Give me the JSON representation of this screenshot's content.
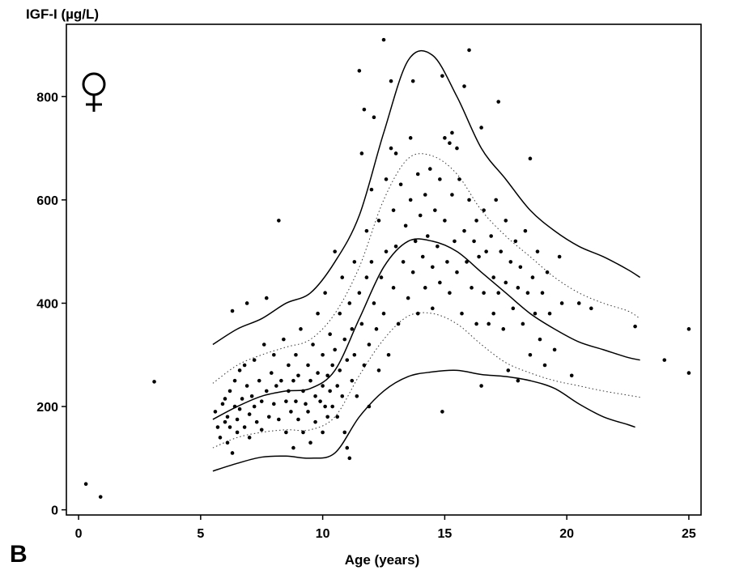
{
  "panel_label": "B",
  "chart_data": {
    "type": "scatter",
    "title": "",
    "xlabel": "Age (years)",
    "ylabel": "IGF-I (µg/L)",
    "xlim": [
      -0.5,
      25.5
    ],
    "ylim": [
      -10,
      940
    ],
    "xticks": [
      0,
      5,
      10,
      15,
      20,
      25
    ],
    "yticks": [
      0,
      200,
      400,
      600,
      800
    ],
    "grid": false,
    "symbol": "female-symbol",
    "points": [
      [
        0.3,
        50
      ],
      [
        0.9,
        25
      ],
      [
        3.1,
        248
      ],
      [
        5.6,
        190
      ],
      [
        5.7,
        160
      ],
      [
        5.8,
        140
      ],
      [
        5.9,
        205
      ],
      [
        6.0,
        170
      ],
      [
        6.0,
        215
      ],
      [
        6.1,
        180
      ],
      [
        6.1,
        130
      ],
      [
        6.2,
        230
      ],
      [
        6.2,
        160
      ],
      [
        6.3,
        385
      ],
      [
        6.3,
        110
      ],
      [
        6.4,
        200
      ],
      [
        6.4,
        250
      ],
      [
        6.5,
        150
      ],
      [
        6.5,
        175
      ],
      [
        6.6,
        270
      ],
      [
        6.6,
        195
      ],
      [
        6.7,
        215
      ],
      [
        6.8,
        280
      ],
      [
        6.8,
        160
      ],
      [
        6.9,
        400
      ],
      [
        6.9,
        240
      ],
      [
        7.0,
        185
      ],
      [
        7.0,
        140
      ],
      [
        7.1,
        220
      ],
      [
        7.2,
        290
      ],
      [
        7.2,
        200
      ],
      [
        7.3,
        170
      ],
      [
        7.4,
        250
      ],
      [
        7.5,
        210
      ],
      [
        7.5,
        155
      ],
      [
        7.6,
        320
      ],
      [
        7.7,
        410
      ],
      [
        7.7,
        230
      ],
      [
        7.8,
        180
      ],
      [
        7.9,
        265
      ],
      [
        8.0,
        205
      ],
      [
        8.0,
        300
      ],
      [
        8.1,
        240
      ],
      [
        8.2,
        560
      ],
      [
        8.2,
        175
      ],
      [
        8.3,
        250
      ],
      [
        8.4,
        330
      ],
      [
        8.5,
        210
      ],
      [
        8.5,
        150
      ],
      [
        8.6,
        280
      ],
      [
        8.6,
        230
      ],
      [
        8.7,
        190
      ],
      [
        8.8,
        250
      ],
      [
        8.8,
        120
      ],
      [
        8.9,
        300
      ],
      [
        8.9,
        210
      ],
      [
        9.0,
        260
      ],
      [
        9.0,
        175
      ],
      [
        9.1,
        350
      ],
      [
        9.2,
        230
      ],
      [
        9.2,
        150
      ],
      [
        9.3,
        205
      ],
      [
        9.4,
        280
      ],
      [
        9.4,
        190
      ],
      [
        9.5,
        250
      ],
      [
        9.5,
        130
      ],
      [
        9.6,
        320
      ],
      [
        9.7,
        220
      ],
      [
        9.7,
        170
      ],
      [
        9.8,
        265
      ],
      [
        9.8,
        380
      ],
      [
        9.9,
        210
      ],
      [
        10.0,
        240
      ],
      [
        10.0,
        300
      ],
      [
        10.0,
        150
      ],
      [
        10.1,
        200
      ],
      [
        10.1,
        420
      ],
      [
        10.2,
        260
      ],
      [
        10.2,
        180
      ],
      [
        10.3,
        340
      ],
      [
        10.3,
        230
      ],
      [
        10.4,
        280
      ],
      [
        10.4,
        200
      ],
      [
        10.5,
        500
      ],
      [
        10.5,
        310
      ],
      [
        10.6,
        240
      ],
      [
        10.6,
        180
      ],
      [
        10.7,
        380
      ],
      [
        10.7,
        270
      ],
      [
        10.8,
        450
      ],
      [
        10.8,
        220
      ],
      [
        10.9,
        330
      ],
      [
        10.9,
        150
      ],
      [
        11.0,
        120
      ],
      [
        11.0,
        290
      ],
      [
        11.1,
        400
      ],
      [
        11.1,
        100
      ],
      [
        11.2,
        250
      ],
      [
        11.2,
        350
      ],
      [
        11.3,
        480
      ],
      [
        11.3,
        300
      ],
      [
        11.4,
        220
      ],
      [
        11.5,
        850
      ],
      [
        11.5,
        420
      ],
      [
        11.6,
        690
      ],
      [
        11.6,
        360
      ],
      [
        11.7,
        775
      ],
      [
        11.7,
        280
      ],
      [
        11.8,
        540
      ],
      [
        11.8,
        450
      ],
      [
        11.9,
        320
      ],
      [
        11.9,
        200
      ],
      [
        12.0,
        620
      ],
      [
        12.0,
        480
      ],
      [
        12.1,
        760
      ],
      [
        12.1,
        400
      ],
      [
        12.2,
        350
      ],
      [
        12.3,
        560
      ],
      [
        12.3,
        270
      ],
      [
        12.4,
        450
      ],
      [
        12.5,
        910
      ],
      [
        12.5,
        380
      ],
      [
        12.6,
        640
      ],
      [
        12.6,
        500
      ],
      [
        12.7,
        300
      ],
      [
        12.8,
        830
      ],
      [
        12.8,
        700
      ],
      [
        12.9,
        580
      ],
      [
        12.9,
        430
      ],
      [
        13.0,
        690
      ],
      [
        13.0,
        510
      ],
      [
        13.1,
        360
      ],
      [
        13.2,
        630
      ],
      [
        13.3,
        480
      ],
      [
        13.4,
        550
      ],
      [
        13.5,
        410
      ],
      [
        13.6,
        720
      ],
      [
        13.6,
        600
      ],
      [
        13.7,
        830
      ],
      [
        13.7,
        460
      ],
      [
        13.8,
        520
      ],
      [
        13.9,
        650
      ],
      [
        13.9,
        380
      ],
      [
        14.0,
        570
      ],
      [
        14.1,
        490
      ],
      [
        14.2,
        610
      ],
      [
        14.2,
        430
      ],
      [
        14.3,
        530
      ],
      [
        14.4,
        660
      ],
      [
        14.5,
        470
      ],
      [
        14.5,
        390
      ],
      [
        14.6,
        580
      ],
      [
        14.7,
        510
      ],
      [
        14.8,
        640
      ],
      [
        14.8,
        440
      ],
      [
        14.9,
        190
      ],
      [
        14.9,
        840
      ],
      [
        15.0,
        720
      ],
      [
        15.0,
        560
      ],
      [
        15.1,
        480
      ],
      [
        15.2,
        710
      ],
      [
        15.2,
        420
      ],
      [
        15.3,
        730
      ],
      [
        15.3,
        610
      ],
      [
        15.4,
        520
      ],
      [
        15.5,
        700
      ],
      [
        15.5,
        460
      ],
      [
        15.6,
        640
      ],
      [
        15.7,
        380
      ],
      [
        15.8,
        820
      ],
      [
        15.8,
        540
      ],
      [
        15.9,
        480
      ],
      [
        16.0,
        890
      ],
      [
        16.0,
        600
      ],
      [
        16.1,
        430
      ],
      [
        16.2,
        520
      ],
      [
        16.3,
        560
      ],
      [
        16.3,
        360
      ],
      [
        16.4,
        490
      ],
      [
        16.5,
        740
      ],
      [
        16.5,
        240
      ],
      [
        16.6,
        420
      ],
      [
        16.6,
        580
      ],
      [
        16.7,
        500
      ],
      [
        16.8,
        360
      ],
      [
        16.9,
        530
      ],
      [
        17.0,
        450
      ],
      [
        17.0,
        380
      ],
      [
        17.1,
        600
      ],
      [
        17.2,
        420
      ],
      [
        17.2,
        790
      ],
      [
        17.3,
        500
      ],
      [
        17.4,
        350
      ],
      [
        17.5,
        560
      ],
      [
        17.5,
        440
      ],
      [
        17.6,
        270
      ],
      [
        17.7,
        480
      ],
      [
        17.8,
        390
      ],
      [
        17.9,
        520
      ],
      [
        18.0,
        430
      ],
      [
        18.0,
        250
      ],
      [
        18.1,
        470
      ],
      [
        18.2,
        360
      ],
      [
        18.3,
        540
      ],
      [
        18.4,
        420
      ],
      [
        18.5,
        680
      ],
      [
        18.5,
        300
      ],
      [
        18.6,
        450
      ],
      [
        18.7,
        380
      ],
      [
        18.8,
        500
      ],
      [
        18.9,
        330
      ],
      [
        19.0,
        420
      ],
      [
        19.1,
        280
      ],
      [
        19.2,
        460
      ],
      [
        19.3,
        380
      ],
      [
        19.5,
        310
      ],
      [
        19.7,
        490
      ],
      [
        19.8,
        400
      ],
      [
        20.2,
        260
      ],
      [
        20.5,
        400
      ],
      [
        21.0,
        390
      ],
      [
        22.8,
        355
      ],
      [
        24.0,
        290
      ],
      [
        25.0,
        350
      ],
      [
        25.0,
        265
      ]
    ],
    "series": [
      {
        "style": "solid",
        "x": [
          5.5,
          6.5,
          7.5,
          8.5,
          9.5,
          10.5,
          11.5,
          12.5,
          13.5,
          14.5,
          15.5,
          16.5,
          17.5,
          18.5,
          19.5,
          20.5,
          21.5,
          22.5,
          23.0
        ],
        "values": [
          320,
          350,
          370,
          400,
          420,
          480,
          570,
          730,
          870,
          880,
          800,
          700,
          640,
          580,
          540,
          510,
          490,
          465,
          450
        ]
      },
      {
        "style": "dotted",
        "x": [
          5.5,
          6.5,
          7.5,
          8.5,
          9.5,
          10.5,
          11.5,
          12.5,
          13.5,
          14.5,
          15.5,
          16.5,
          17.5,
          18.5,
          19.5,
          20.5,
          21.5,
          22.5,
          23.0
        ],
        "values": [
          245,
          280,
          300,
          315,
          330,
          380,
          470,
          600,
          680,
          685,
          650,
          580,
          530,
          490,
          450,
          420,
          400,
          385,
          370
        ]
      },
      {
        "style": "solid",
        "x": [
          5.5,
          6.5,
          7.5,
          8.5,
          9.5,
          10.5,
          11.5,
          12.5,
          13.5,
          14.5,
          15.5,
          16.5,
          17.5,
          18.5,
          19.5,
          20.5,
          21.5,
          22.5,
          23.0
        ],
        "values": [
          175,
          200,
          220,
          230,
          235,
          270,
          370,
          470,
          520,
          520,
          500,
          460,
          420,
          380,
          350,
          325,
          310,
          295,
          290
        ]
      },
      {
        "style": "dotted",
        "x": [
          5.5,
          6.5,
          7.5,
          8.5,
          9.5,
          10.5,
          11.5,
          12.5,
          13.5,
          14.5,
          15.5,
          16.5,
          17.5,
          18.5,
          19.5,
          20.5,
          21.5,
          22.5,
          23.0
        ],
        "values": [
          120,
          140,
          150,
          155,
          155,
          180,
          260,
          330,
          375,
          380,
          360,
          320,
          285,
          265,
          250,
          240,
          230,
          222,
          218
        ]
      },
      {
        "style": "solid",
        "x": [
          5.5,
          6.5,
          7.5,
          8.5,
          9.5,
          10.5,
          11.5,
          12.5,
          13.5,
          14.5,
          15.5,
          16.5,
          17.5,
          18.5,
          19.5,
          20.5,
          21.5,
          22.5,
          22.8
        ],
        "values": [
          75,
          90,
          102,
          104,
          100,
          110,
          180,
          230,
          258,
          267,
          270,
          262,
          258,
          250,
          235,
          205,
          180,
          165,
          160
        ]
      }
    ]
  }
}
